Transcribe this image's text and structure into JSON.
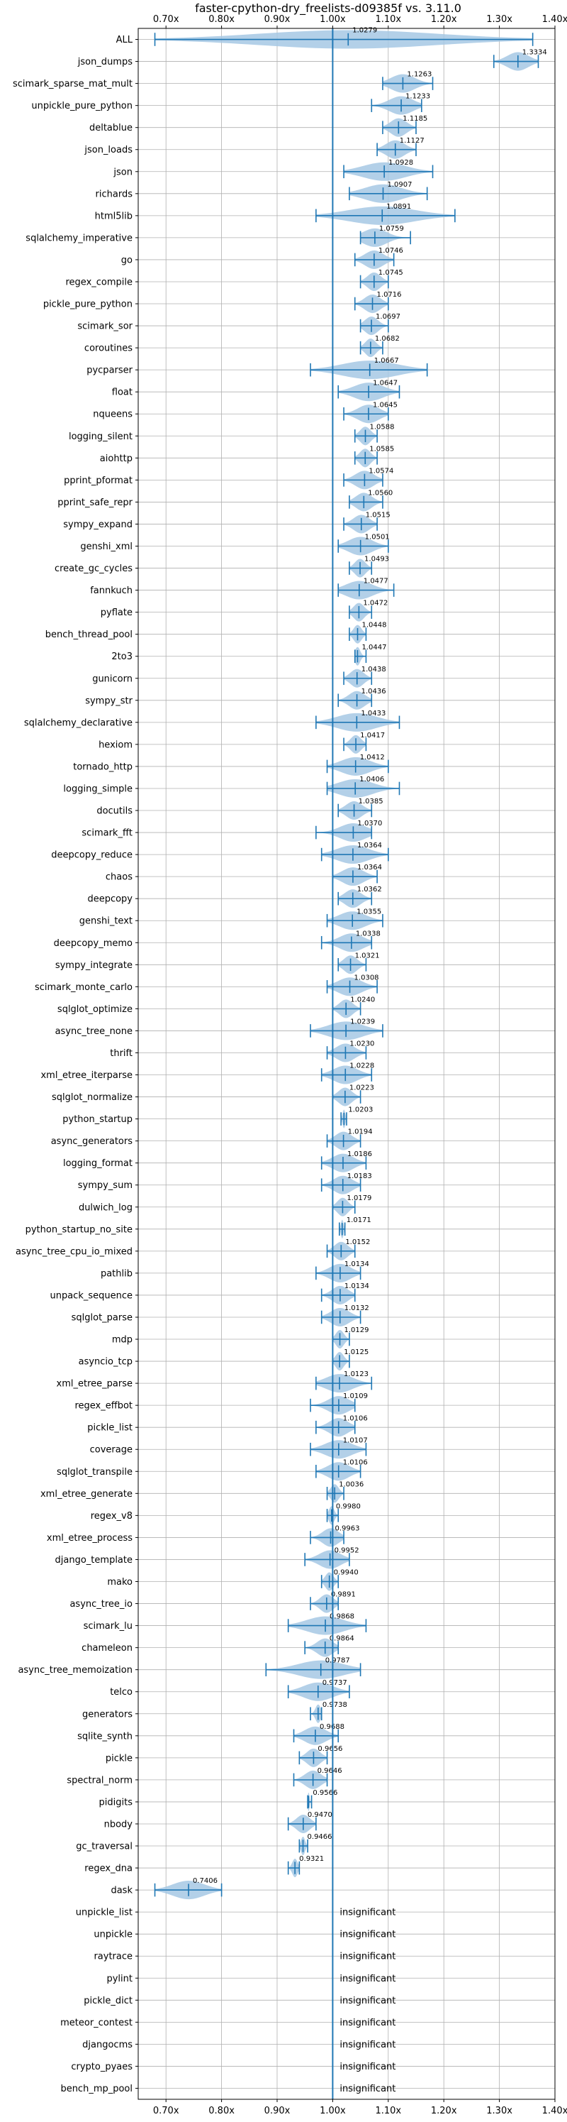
{
  "chart_data": {
    "type": "violin",
    "title": "faster-cpython-dry_freelists-d09385f vs. 3.11.0",
    "xlim": [
      0.65,
      1.4
    ],
    "xticks": [
      0.7,
      0.8,
      0.9,
      1.0,
      1.1,
      1.2,
      1.3,
      1.4
    ],
    "xtick_labels": [
      "0.70x",
      "0.80x",
      "0.90x",
      "1.00x",
      "1.10x",
      "1.20x",
      "1.30x",
      "1.40x"
    ],
    "reference_line": 1.0,
    "grid": true,
    "colors": {
      "line": "#1f77b4",
      "fill": "#a6c8e4",
      "grid": "#b0b0b0"
    },
    "insignificant_text": "insignificant",
    "benchmarks": [
      {
        "name": "ALL",
        "value": 1.0279,
        "min": 0.68,
        "max": 1.36
      },
      {
        "name": "json_dumps",
        "value": 1.3334,
        "min": 1.29,
        "max": 1.37
      },
      {
        "name": "scimark_sparse_mat_mult",
        "value": 1.1263,
        "min": 1.09,
        "max": 1.18
      },
      {
        "name": "unpickle_pure_python",
        "value": 1.1233,
        "min": 1.07,
        "max": 1.16
      },
      {
        "name": "deltablue",
        "value": 1.1185,
        "min": 1.09,
        "max": 1.15
      },
      {
        "name": "json_loads",
        "value": 1.1127,
        "min": 1.08,
        "max": 1.15
      },
      {
        "name": "json",
        "value": 1.0928,
        "min": 1.02,
        "max": 1.18
      },
      {
        "name": "richards",
        "value": 1.0907,
        "min": 1.03,
        "max": 1.17
      },
      {
        "name": "html5lib",
        "value": 1.0891,
        "min": 0.97,
        "max": 1.22
      },
      {
        "name": "sqlalchemy_imperative",
        "value": 1.0759,
        "min": 1.05,
        "max": 1.14
      },
      {
        "name": "go",
        "value": 1.0746,
        "min": 1.04,
        "max": 1.11
      },
      {
        "name": "regex_compile",
        "value": 1.0745,
        "min": 1.05,
        "max": 1.1
      },
      {
        "name": "pickle_pure_python",
        "value": 1.0716,
        "min": 1.04,
        "max": 1.1
      },
      {
        "name": "scimark_sor",
        "value": 1.0697,
        "min": 1.05,
        "max": 1.1
      },
      {
        "name": "coroutines",
        "value": 1.0682,
        "min": 1.05,
        "max": 1.09
      },
      {
        "name": "pycparser",
        "value": 1.0667,
        "min": 0.96,
        "max": 1.17
      },
      {
        "name": "float",
        "value": 1.0647,
        "min": 1.01,
        "max": 1.12
      },
      {
        "name": "nqueens",
        "value": 1.0645,
        "min": 1.02,
        "max": 1.1
      },
      {
        "name": "logging_silent",
        "value": 1.0588,
        "min": 1.04,
        "max": 1.08
      },
      {
        "name": "aiohttp",
        "value": 1.0585,
        "min": 1.04,
        "max": 1.08
      },
      {
        "name": "pprint_pformat",
        "value": 1.0574,
        "min": 1.02,
        "max": 1.09
      },
      {
        "name": "pprint_safe_repr",
        "value": 1.056,
        "min": 1.03,
        "max": 1.09
      },
      {
        "name": "sympy_expand",
        "value": 1.0515,
        "min": 1.02,
        "max": 1.08
      },
      {
        "name": "genshi_xml",
        "value": 1.0501,
        "min": 1.01,
        "max": 1.1
      },
      {
        "name": "create_gc_cycles",
        "value": 1.0493,
        "min": 1.03,
        "max": 1.07
      },
      {
        "name": "fannkuch",
        "value": 1.0477,
        "min": 1.01,
        "max": 1.11
      },
      {
        "name": "pyflate",
        "value": 1.0472,
        "min": 1.03,
        "max": 1.07
      },
      {
        "name": "bench_thread_pool",
        "value": 1.0448,
        "min": 1.03,
        "max": 1.06
      },
      {
        "name": "2to3",
        "value": 1.0447,
        "min": 1.04,
        "max": 1.06
      },
      {
        "name": "gunicorn",
        "value": 1.0438,
        "min": 1.02,
        "max": 1.07
      },
      {
        "name": "sympy_str",
        "value": 1.0436,
        "min": 1.01,
        "max": 1.07
      },
      {
        "name": "sqlalchemy_declarative",
        "value": 1.0433,
        "min": 0.97,
        "max": 1.12
      },
      {
        "name": "hexiom",
        "value": 1.0417,
        "min": 1.02,
        "max": 1.06
      },
      {
        "name": "tornado_http",
        "value": 1.0412,
        "min": 0.99,
        "max": 1.1
      },
      {
        "name": "logging_simple",
        "value": 1.0406,
        "min": 0.99,
        "max": 1.12
      },
      {
        "name": "docutils",
        "value": 1.0385,
        "min": 1.01,
        "max": 1.07
      },
      {
        "name": "scimark_fft",
        "value": 1.037,
        "min": 0.97,
        "max": 1.07
      },
      {
        "name": "deepcopy_reduce",
        "value": 1.0364,
        "min": 0.98,
        "max": 1.1
      },
      {
        "name": "chaos",
        "value": 1.0364,
        "min": 1.0,
        "max": 1.08
      },
      {
        "name": "deepcopy",
        "value": 1.0362,
        "min": 1.01,
        "max": 1.07
      },
      {
        "name": "genshi_text",
        "value": 1.0355,
        "min": 0.99,
        "max": 1.09
      },
      {
        "name": "deepcopy_memo",
        "value": 1.0338,
        "min": 0.98,
        "max": 1.07
      },
      {
        "name": "sympy_integrate",
        "value": 1.0321,
        "min": 1.01,
        "max": 1.06
      },
      {
        "name": "scimark_monte_carlo",
        "value": 1.0308,
        "min": 0.99,
        "max": 1.08
      },
      {
        "name": "sqlglot_optimize",
        "value": 1.024,
        "min": 1.0,
        "max": 1.05
      },
      {
        "name": "async_tree_none",
        "value": 1.0239,
        "min": 0.96,
        "max": 1.09
      },
      {
        "name": "thrift",
        "value": 1.023,
        "min": 0.99,
        "max": 1.06
      },
      {
        "name": "xml_etree_iterparse",
        "value": 1.0228,
        "min": 0.98,
        "max": 1.07
      },
      {
        "name": "sqlglot_normalize",
        "value": 1.0223,
        "min": 1.0,
        "max": 1.05
      },
      {
        "name": "python_startup",
        "value": 1.0203,
        "min": 1.015,
        "max": 1.025
      },
      {
        "name": "async_generators",
        "value": 1.0194,
        "min": 0.99,
        "max": 1.05
      },
      {
        "name": "logging_format",
        "value": 1.0186,
        "min": 0.98,
        "max": 1.06
      },
      {
        "name": "sympy_sum",
        "value": 1.0183,
        "min": 0.98,
        "max": 1.05
      },
      {
        "name": "dulwich_log",
        "value": 1.0179,
        "min": 1.0,
        "max": 1.04
      },
      {
        "name": "python_startup_no_site",
        "value": 1.0171,
        "min": 1.012,
        "max": 1.022
      },
      {
        "name": "async_tree_cpu_io_mixed",
        "value": 1.0152,
        "min": 0.99,
        "max": 1.04
      },
      {
        "name": "pathlib",
        "value": 1.0134,
        "min": 0.97,
        "max": 1.05
      },
      {
        "name": "unpack_sequence",
        "value": 1.0134,
        "min": 0.98,
        "max": 1.04
      },
      {
        "name": "sqlglot_parse",
        "value": 1.0132,
        "min": 0.98,
        "max": 1.05
      },
      {
        "name": "mdp",
        "value": 1.0129,
        "min": 1.0,
        "max": 1.03
      },
      {
        "name": "asyncio_tcp",
        "value": 1.0125,
        "min": 1.0,
        "max": 1.03
      },
      {
        "name": "xml_etree_parse",
        "value": 1.0123,
        "min": 0.97,
        "max": 1.07
      },
      {
        "name": "regex_effbot",
        "value": 1.0109,
        "min": 0.96,
        "max": 1.04
      },
      {
        "name": "pickle_list",
        "value": 1.0106,
        "min": 0.97,
        "max": 1.04
      },
      {
        "name": "coverage",
        "value": 1.0107,
        "min": 0.96,
        "max": 1.06
      },
      {
        "name": "sqlglot_transpile",
        "value": 1.0106,
        "min": 0.97,
        "max": 1.05
      },
      {
        "name": "xml_etree_generate",
        "value": 1.0036,
        "min": 0.99,
        "max": 1.02
      },
      {
        "name": "regex_v8",
        "value": 0.998,
        "min": 0.99,
        "max": 1.01
      },
      {
        "name": "xml_etree_process",
        "value": 0.9963,
        "min": 0.96,
        "max": 1.02
      },
      {
        "name": "django_template",
        "value": 0.9952,
        "min": 0.95,
        "max": 1.03
      },
      {
        "name": "mako",
        "value": 0.994,
        "min": 0.98,
        "max": 1.01
      },
      {
        "name": "async_tree_io",
        "value": 0.9891,
        "min": 0.96,
        "max": 1.01
      },
      {
        "name": "scimark_lu",
        "value": 0.9868,
        "min": 0.92,
        "max": 1.06
      },
      {
        "name": "chameleon",
        "value": 0.9864,
        "min": 0.95,
        "max": 1.01
      },
      {
        "name": "async_tree_memoization",
        "value": 0.9787,
        "min": 0.88,
        "max": 1.05
      },
      {
        "name": "telco",
        "value": 0.9737,
        "min": 0.92,
        "max": 1.03
      },
      {
        "name": "generators",
        "value": 0.9738,
        "min": 0.96,
        "max": 0.98
      },
      {
        "name": "sqlite_synth",
        "value": 0.9688,
        "min": 0.93,
        "max": 1.01
      },
      {
        "name": "pickle",
        "value": 0.9656,
        "min": 0.94,
        "max": 0.99
      },
      {
        "name": "spectral_norm",
        "value": 0.9646,
        "min": 0.93,
        "max": 0.99
      },
      {
        "name": "pidigits",
        "value": 0.9566,
        "min": 0.955,
        "max": 0.962
      },
      {
        "name": "nbody",
        "value": 0.947,
        "min": 0.92,
        "max": 0.97
      },
      {
        "name": "gc_traversal",
        "value": 0.9466,
        "min": 0.94,
        "max": 0.955
      },
      {
        "name": "regex_dna",
        "value": 0.9321,
        "min": 0.92,
        "max": 0.94
      },
      {
        "name": "dask",
        "value": 0.7406,
        "min": 0.68,
        "max": 0.8
      },
      {
        "name": "unpickle_list",
        "value": null
      },
      {
        "name": "unpickle",
        "value": null
      },
      {
        "name": "raytrace",
        "value": null
      },
      {
        "name": "pylint",
        "value": null
      },
      {
        "name": "pickle_dict",
        "value": null
      },
      {
        "name": "meteor_contest",
        "value": null
      },
      {
        "name": "djangocms",
        "value": null
      },
      {
        "name": "crypto_pyaes",
        "value": null
      },
      {
        "name": "bench_mp_pool",
        "value": null
      }
    ]
  }
}
